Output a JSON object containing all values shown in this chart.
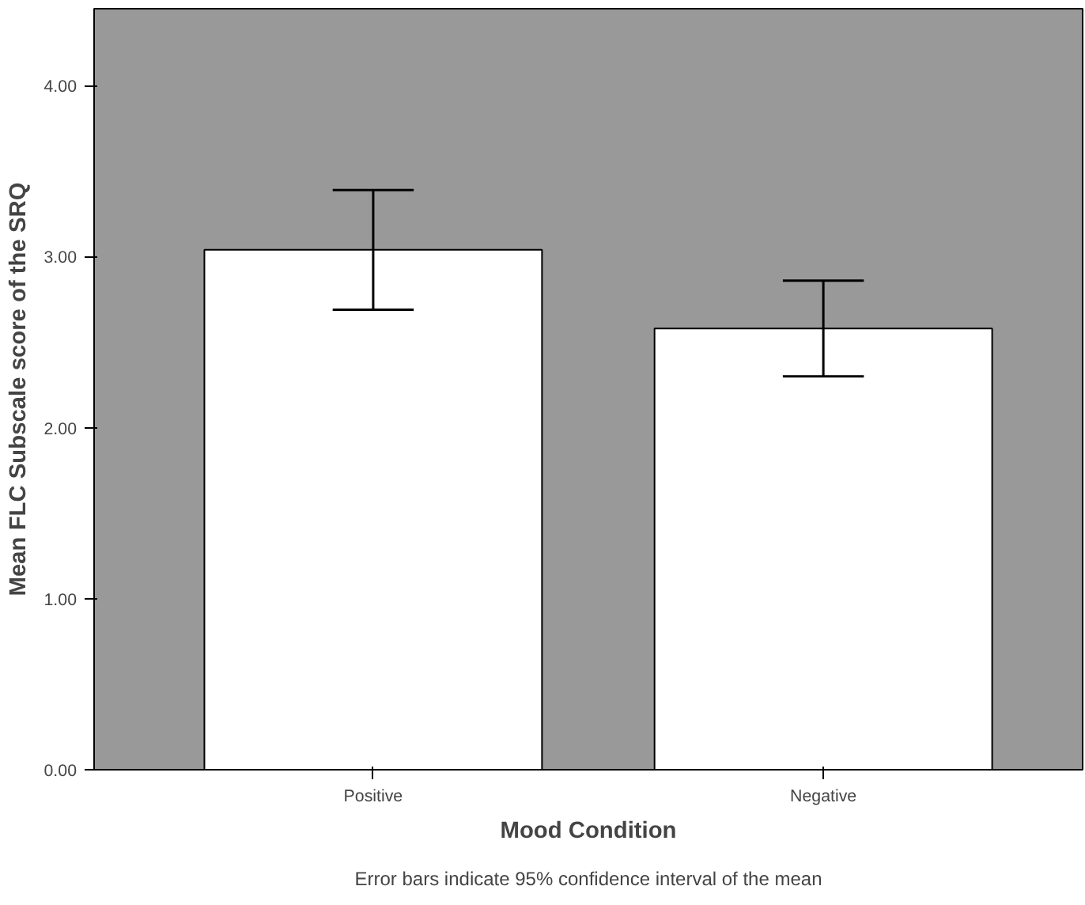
{
  "chart_data": {
    "type": "bar",
    "xlabel": "Mood Condition",
    "ylabel": "Mean FLC Subscale score of the SRQ",
    "categories": [
      "Positive",
      "Negative"
    ],
    "values": [
      3.04,
      2.58
    ],
    "errors": [
      0.35,
      0.28
    ],
    "color": "#ffffff",
    "ylim": [
      0,
      4.45
    ],
    "yticks": [
      {
        "value": 0,
        "label": "0.00"
      },
      {
        "value": 1,
        "label": "1.00"
      },
      {
        "value": 2,
        "label": "2.00"
      },
      {
        "value": 3,
        "label": "3.00"
      },
      {
        "value": 4,
        "label": "4.00"
      }
    ],
    "grid": false,
    "annotations": [
      "Error bars indicate 95% confidence interval of the mean"
    ]
  }
}
